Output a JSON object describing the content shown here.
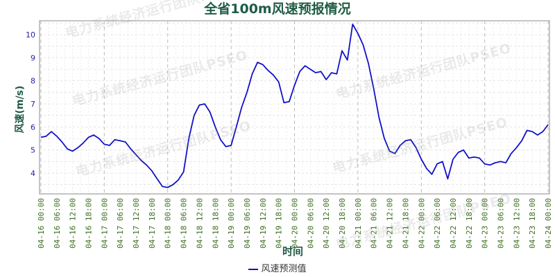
{
  "watermark_text": "电力系统经济运行团队PSEO",
  "colors": {
    "title": "#1f5c45",
    "axis_label": "#1f5c45",
    "tick_label_x": "#3a6b1f",
    "tick_label_y": "#2222aa",
    "line": "#1010c8",
    "grid": "#dddddd",
    "grid_major": "#bbbbbb"
  },
  "chart_data": {
    "type": "line",
    "title": "全省100m风速预报情况",
    "xlabel": "时间",
    "ylabel": "风速(m/s)",
    "ylim": [
      3.1,
      10.6
    ],
    "yticks": [
      4,
      5,
      6,
      7,
      8,
      9,
      10
    ],
    "x_hours_range": [
      -0.5,
      192.5
    ],
    "xtick_labels": [
      "04-16 00:00",
      "04-16 06:00",
      "04-16 12:00",
      "04-16 18:00",
      "04-17 00:00",
      "04-17 06:00",
      "04-17 12:00",
      "04-17 18:00",
      "04-18 00:00",
      "04-18 06:00",
      "04-18 12:00",
      "04-18 18:00",
      "04-19 00:00",
      "04-19 06:00",
      "04-19 12:00",
      "04-19 18:00",
      "04-20 00:00",
      "04-20 06:00",
      "04-20 12:00",
      "04-20 18:00",
      "04-21 00:00",
      "04-21 06:00",
      "04-21 12:00",
      "04-21 18:00",
      "04-22 00:00",
      "04-22 06:00",
      "04-22 12:00",
      "04-22 18:00",
      "04-23 00:00",
      "04-23 06:00",
      "04-23 12:00",
      "04-23 18:00",
      "04-24 00:00"
    ],
    "grid": true,
    "legend_position": "bottom-center",
    "series": [
      {
        "name": "风速预测值",
        "x_hours": [
          0,
          2,
          4,
          6,
          8,
          10,
          12,
          14,
          16,
          18,
          20,
          22,
          24,
          26,
          28,
          30,
          32,
          34,
          36,
          38,
          40,
          42,
          44,
          46,
          48,
          50,
          52,
          54,
          56,
          58,
          60,
          62,
          64,
          66,
          68,
          70,
          72,
          74,
          76,
          78,
          80,
          82,
          84,
          86,
          88,
          90,
          92,
          94,
          96,
          98,
          100,
          102,
          104,
          106,
          108,
          110,
          112,
          114,
          116,
          118,
          120,
          122,
          124,
          126,
          128,
          130,
          132,
          134,
          136,
          138,
          140,
          142,
          144,
          146,
          148,
          150,
          152,
          154,
          156,
          158,
          160,
          162,
          164,
          166,
          168,
          170,
          172,
          174,
          176,
          178,
          180,
          182,
          184,
          186,
          188,
          190,
          192
        ],
        "values": [
          5.55,
          5.6,
          5.8,
          5.6,
          5.35,
          5.05,
          4.95,
          5.1,
          5.3,
          5.55,
          5.65,
          5.5,
          5.25,
          5.2,
          5.45,
          5.4,
          5.35,
          5.05,
          4.8,
          4.55,
          4.35,
          4.1,
          3.75,
          3.42,
          3.38,
          3.5,
          3.7,
          4.05,
          5.5,
          6.5,
          6.95,
          7.0,
          6.65,
          6.0,
          5.45,
          5.15,
          5.2,
          6.0,
          6.85,
          7.5,
          8.3,
          8.8,
          8.7,
          8.45,
          8.25,
          7.95,
          7.05,
          7.1,
          7.8,
          8.4,
          8.65,
          8.5,
          8.35,
          8.4,
          8.05,
          8.35,
          8.3,
          9.3,
          8.9,
          10.45,
          10.05,
          9.55,
          8.75,
          7.65,
          6.4,
          5.5,
          4.95,
          4.85,
          5.2,
          5.4,
          5.45,
          5.1,
          4.6,
          4.2,
          3.95,
          4.4,
          4.5,
          3.75,
          4.6,
          4.9,
          5.0,
          4.65,
          4.7,
          4.65,
          4.4,
          4.35,
          4.45,
          4.5,
          4.45,
          4.85,
          5.1,
          5.4,
          5.85,
          5.8,
          5.65,
          5.8,
          6.1
        ]
      }
    ]
  }
}
